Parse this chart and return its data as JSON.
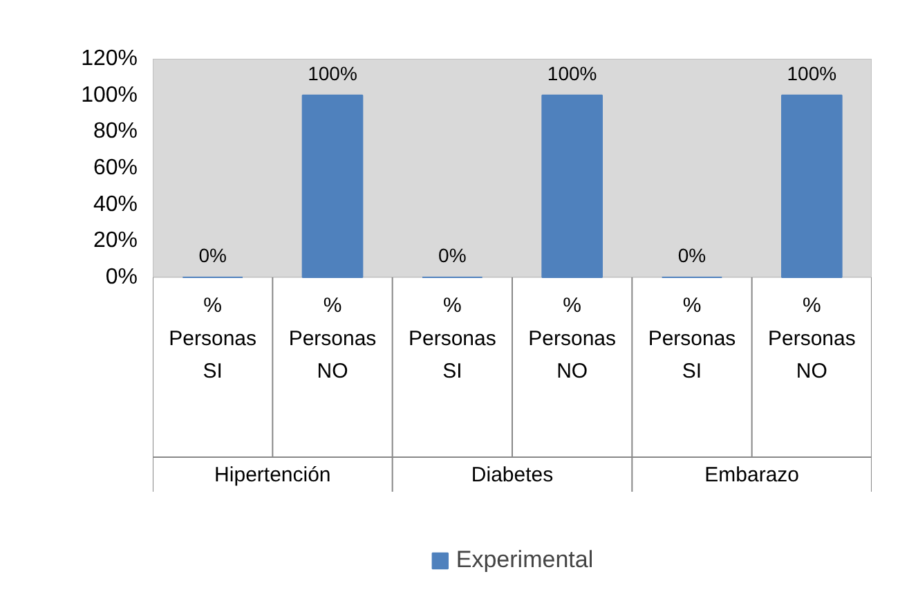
{
  "chart_data": {
    "type": "bar",
    "categories": [
      "%\nPersonas\nSI",
      "%\nPersonas\nNO",
      "%\nPersonas\nSI",
      "%\nPersonas\nNO",
      "%\nPersonas\nSI",
      "%\nPersonas\nNO"
    ],
    "series": [
      {
        "name": "Experimental",
        "color": "#4f81bd",
        "values": [
          0,
          100,
          0,
          100,
          0,
          100
        ]
      }
    ],
    "annotations": [
      "Hipertención",
      "Diabetes",
      "Embarazo"
    ],
    "ylim": [
      0,
      120
    ],
    "yticks": [
      {
        "value": 0,
        "label": "0%"
      },
      {
        "value": 20,
        "label": "20%"
      },
      {
        "value": 40,
        "label": "40%"
      },
      {
        "value": 60,
        "label": "60%"
      },
      {
        "value": 80,
        "label": "80%"
      },
      {
        "value": 100,
        "label": "100%"
      },
      {
        "value": 120,
        "label": "120%"
      }
    ],
    "value_labels": [
      "0%",
      "100%",
      "0%",
      "100%",
      "0%",
      "100%"
    ],
    "grid": false,
    "legend": "bottom"
  }
}
